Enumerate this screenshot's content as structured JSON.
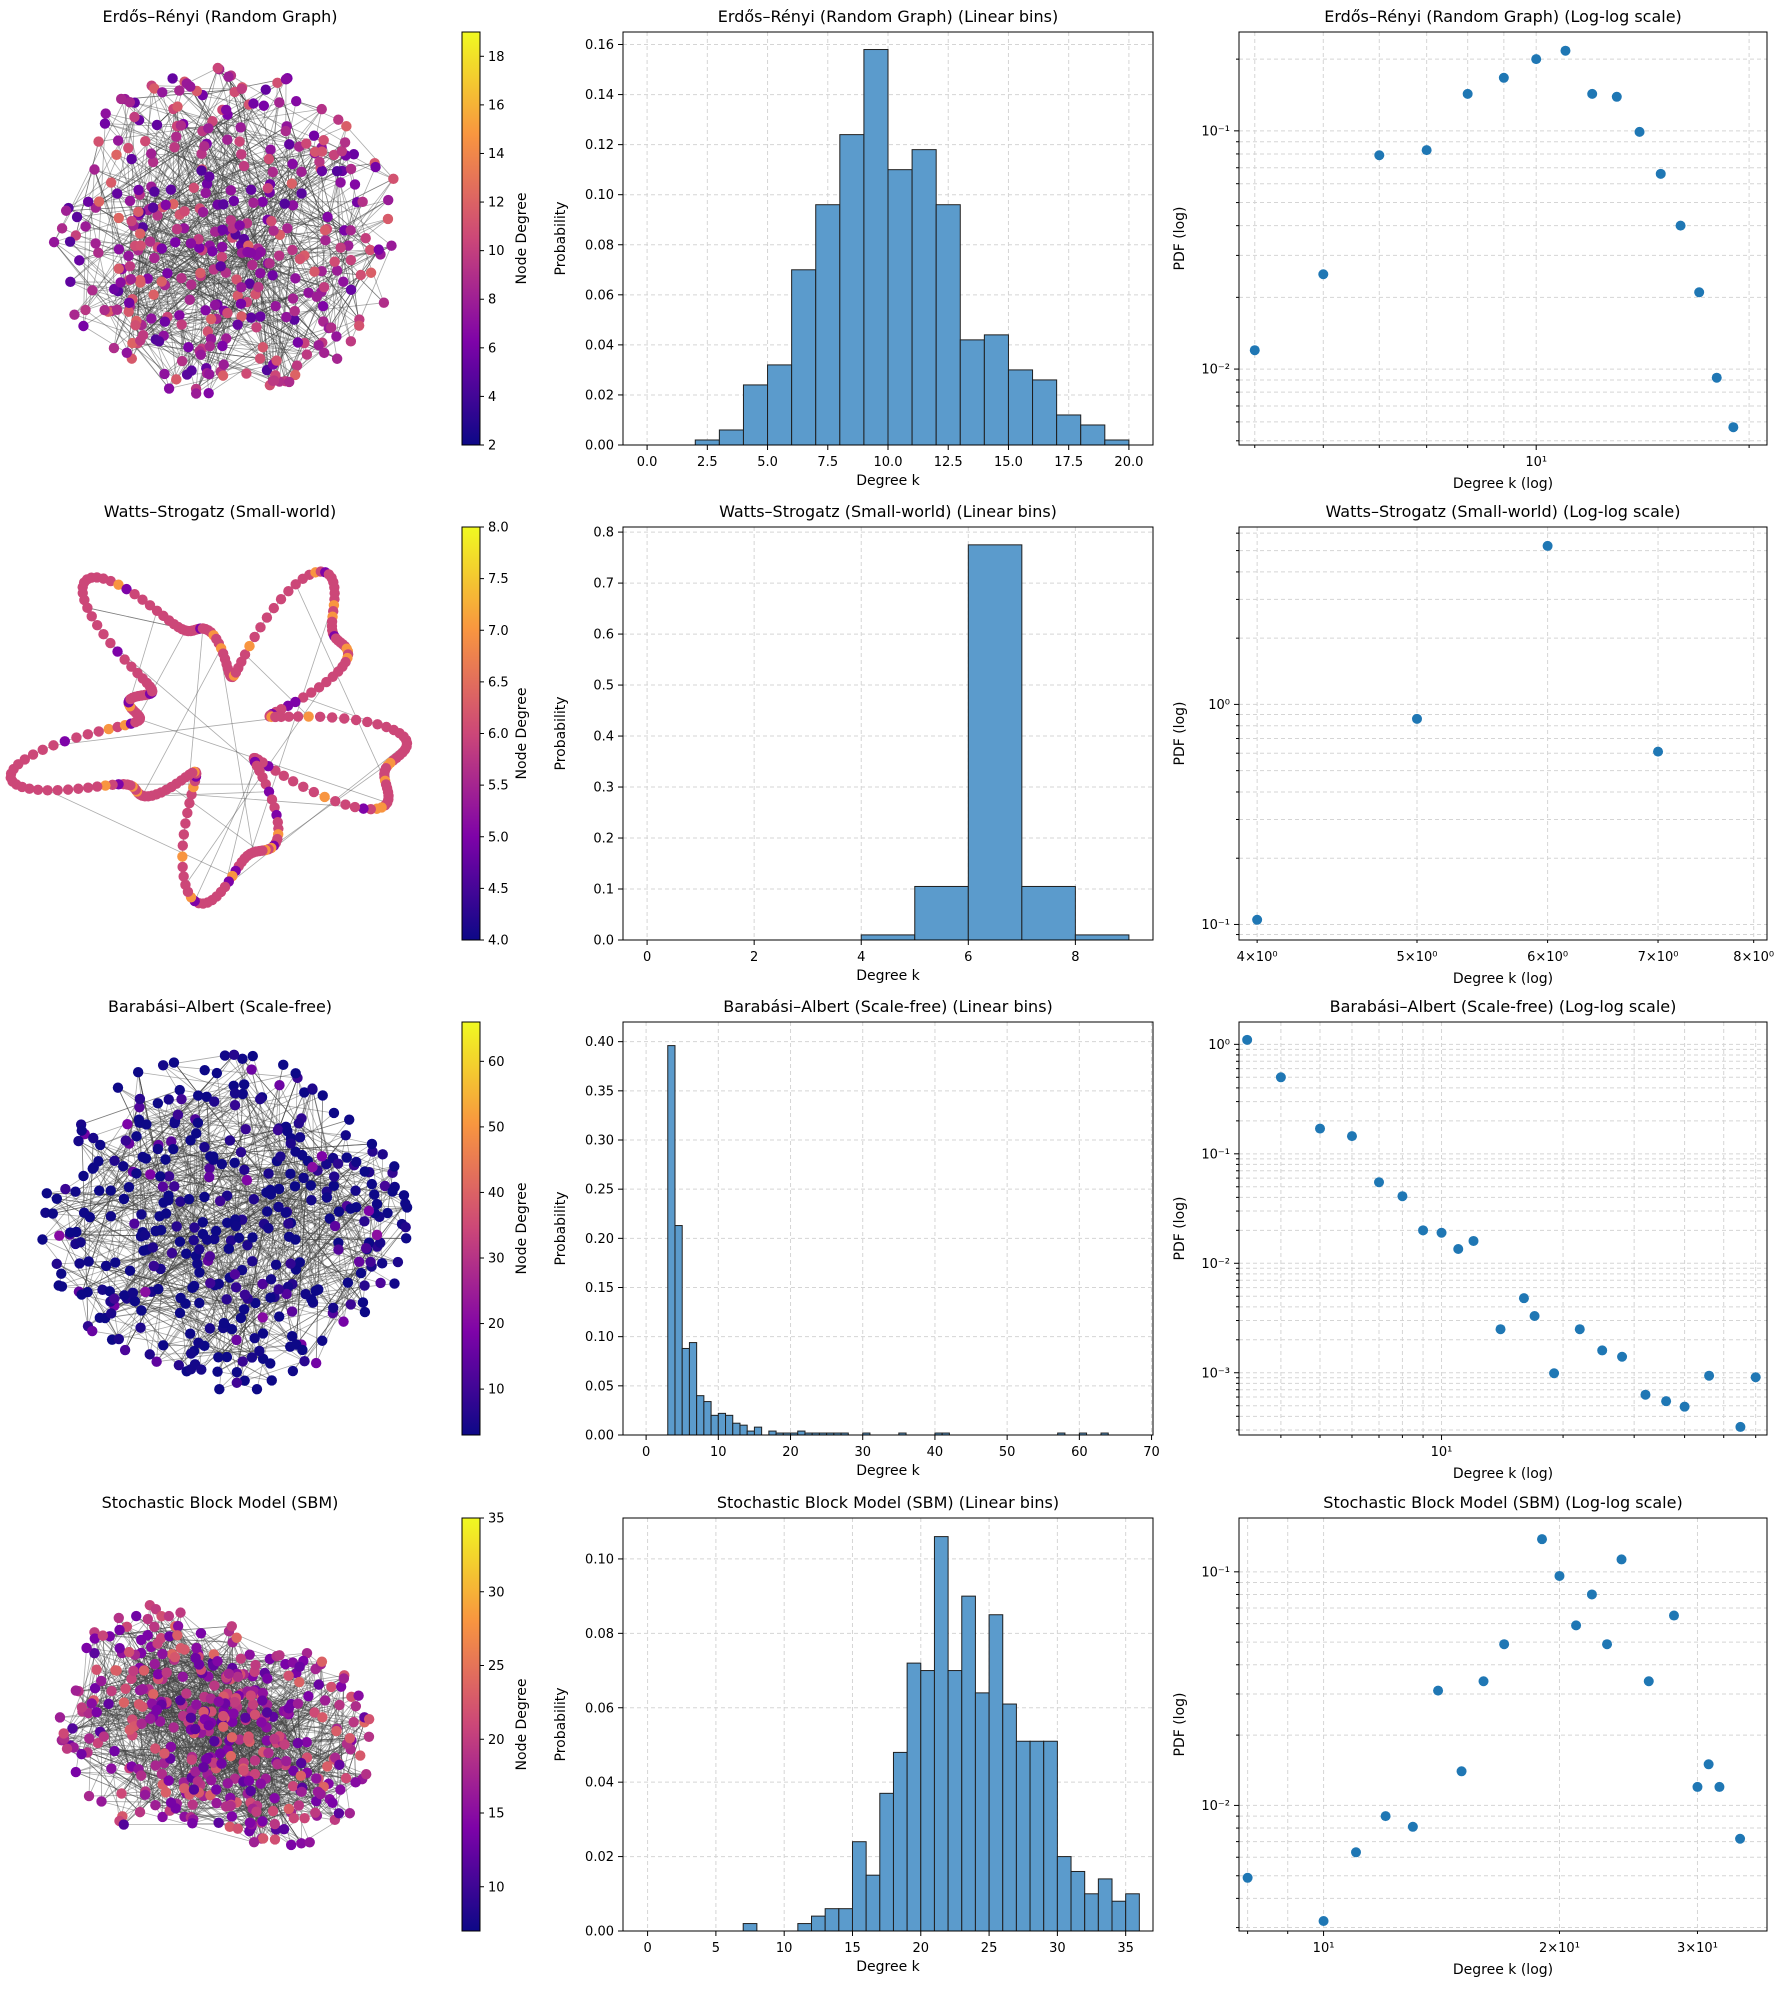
{
  "figure": {
    "rows": [
      {
        "network": {
          "title": "Erdős–Rényi (Random Graph)",
          "colorbar": {
            "label": "Node Degree",
            "ticks": [
              "2",
              "4",
              "6",
              "8",
              "10",
              "12",
              "14",
              "16",
              "18"
            ],
            "min": 2,
            "max": 19
          },
          "style": "dense",
          "node_degree_range": [
            2,
            19
          ]
        },
        "hist": {
          "title": "Erdős–Rényi (Random Graph) (Linear bins)",
          "xlabel": "Degree k",
          "ylabel": "Probability",
          "xticks": [
            "0.0",
            "2.5",
            "5.0",
            "7.5",
            "10.0",
            "12.5",
            "15.0",
            "17.5",
            "20.0"
          ],
          "yticks": [
            "0.00",
            "0.02",
            "0.04",
            "0.06",
            "0.08",
            "0.10",
            "0.12",
            "0.14",
            "0.16"
          ]
        },
        "loglog": {
          "title": "Erdős–Rényi (Random Graph) (Log-log scale)",
          "xlabel": "Degree k (log)",
          "ylabel": "PDF (log)",
          "xtick_labels": [
            "10¹"
          ],
          "ytick_labels": [
            "10⁻²",
            "10⁻¹"
          ]
        }
      },
      {
        "network": {
          "title": "Watts–Strogatz (Small-world)",
          "colorbar": {
            "label": "Node Degree",
            "ticks": [
              "4.0",
              "4.5",
              "5.0",
              "5.5",
              "6.0",
              "6.5",
              "7.0",
              "7.5",
              "8.0"
            ],
            "min": 4,
            "max": 8
          },
          "style": "ring",
          "node_degree_range": [
            4,
            8
          ]
        },
        "hist": {
          "title": "Watts–Strogatz (Small-world) (Linear bins)",
          "xlabel": "Degree k",
          "ylabel": "Probability",
          "xticks": [
            "0",
            "2",
            "4",
            "6",
            "8"
          ],
          "yticks": [
            "0.0",
            "0.1",
            "0.2",
            "0.3",
            "0.4",
            "0.5",
            "0.6",
            "0.7",
            "0.8"
          ]
        },
        "loglog": {
          "title": "Watts–Strogatz (Small-world) (Log-log scale)",
          "xlabel": "Degree k (log)",
          "ylabel": "PDF (log)",
          "xtick_labels": [
            "4×10⁰",
            "5×10⁰",
            "6×10⁰",
            "7×10⁰",
            "8×10⁰"
          ],
          "ytick_labels": [
            "10⁻¹",
            "10⁰"
          ]
        }
      },
      {
        "network": {
          "title": "Barabási–Albert (Scale-free)",
          "colorbar": {
            "label": "Node Degree",
            "ticks": [
              "10",
              "20",
              "30",
              "40",
              "50",
              "60"
            ],
            "min": 3,
            "max": 66
          },
          "style": "scalefree",
          "node_degree_range": [
            3,
            66
          ]
        },
        "hist": {
          "title": "Barabási–Albert (Scale-free) (Linear bins)",
          "xlabel": "Degree k",
          "ylabel": "Probability",
          "xticks": [
            "0",
            "10",
            "20",
            "30",
            "40",
            "50",
            "60",
            "70"
          ],
          "yticks": [
            "0.00",
            "0.05",
            "0.10",
            "0.15",
            "0.20",
            "0.25",
            "0.30",
            "0.35",
            "0.40"
          ]
        },
        "loglog": {
          "title": "Barabási–Albert (Scale-free) (Log-log scale)",
          "xlabel": "Degree k (log)",
          "ylabel": "PDF (log)",
          "xtick_labels": [
            "10¹"
          ],
          "ytick_labels": [
            "10⁻³",
            "10⁻²",
            "10⁻¹",
            "10⁰"
          ]
        }
      },
      {
        "network": {
          "title": "Stochastic Block Model (SBM)",
          "colorbar": {
            "label": "Node Degree",
            "ticks": [
              "10",
              "15",
              "20",
              "25",
              "30",
              "35"
            ],
            "min": 7,
            "max": 35
          },
          "style": "sbm",
          "node_degree_range": [
            7,
            35
          ]
        },
        "hist": {
          "title": "Stochastic Block Model (SBM) (Linear bins)",
          "xlabel": "Degree k",
          "ylabel": "Probability",
          "xticks": [
            "0",
            "5",
            "10",
            "15",
            "20",
            "25",
            "30",
            "35"
          ],
          "yticks": [
            "0.00",
            "0.02",
            "0.04",
            "0.06",
            "0.08",
            "0.10"
          ]
        },
        "loglog": {
          "title": "Stochastic Block Model (SBM) (Log-log scale)",
          "xlabel": "Degree k (log)",
          "ylabel": "PDF (log)",
          "xtick_labels": [
            "10¹",
            "2×10¹",
            "3×10¹"
          ],
          "ytick_labels": [
            "10⁻²",
            "10⁻¹"
          ]
        }
      }
    ]
  },
  "colors": {
    "bar_fill": "#5b9bcc",
    "bar_edge": "#1f1f1f",
    "point": "#1f77b4",
    "grid": "#d5d5d5"
  },
  "chart_data": [
    {
      "type": "histogram",
      "title": "Erdős–Rényi (Random Graph) (Linear bins)",
      "xlabel": "Degree k",
      "ylabel": "Probability",
      "xlim": [
        -1,
        21
      ],
      "ylim": [
        0,
        0.165
      ],
      "bin_edges": [
        2,
        3,
        4,
        5,
        6,
        7,
        8,
        9,
        10,
        11,
        12,
        13,
        14,
        15,
        16,
        17,
        18,
        19,
        20
      ],
      "values": [
        0.002,
        0.006,
        0.024,
        0.032,
        0.07,
        0.096,
        0.124,
        0.158,
        0.11,
        0.118,
        0.096,
        0.042,
        0.044,
        0.03,
        0.026,
        0.012,
        0.008,
        0.002
      ]
    },
    {
      "type": "scatter",
      "title": "Erdős–Rényi (Random Graph) (Log-log scale)",
      "xscale": "log",
      "yscale": "log",
      "xlabel": "Degree k (log)",
      "ylabel": "PDF (log)",
      "xlim": [
        3.8,
        21.2
      ],
      "ylim": [
        0.0048,
        0.26
      ],
      "x": [
        4,
        5,
        6,
        7,
        8,
        9,
        10,
        11,
        12,
        13,
        14,
        15,
        16,
        17,
        18,
        19
      ],
      "y": [
        0.012,
        0.025,
        0.079,
        0.083,
        0.143,
        0.167,
        0.2,
        0.217,
        0.143,
        0.139,
        0.099,
        0.066,
        0.04,
        0.021,
        0.0092,
        0.0057
      ]
    },
    {
      "type": "histogram",
      "title": "Watts–Strogatz (Small-world) (Linear bins)",
      "xlabel": "Degree k",
      "ylabel": "Probability",
      "xlim": [
        -0.45,
        9.45
      ],
      "ylim": [
        0,
        0.81
      ],
      "bin_edges": [
        0,
        1,
        2,
        3,
        4,
        5,
        6,
        7,
        8,
        9
      ],
      "values": [
        0,
        0,
        0,
        0,
        0.01,
        0.105,
        0.775,
        0.105,
        0.01
      ]
    },
    {
      "type": "scatter",
      "title": "Watts–Strogatz (Small-world) (Log-log scale)",
      "xscale": "log",
      "yscale": "log",
      "xlabel": "Degree k (log)",
      "ylabel": "PDF (log)",
      "xlim": [
        3.9,
        8.15
      ],
      "ylim": [
        0.085,
        6.4
      ],
      "x": [
        4,
        5,
        6,
        7
      ],
      "y": [
        0.105,
        0.86,
        5.25,
        0.61
      ]
    },
    {
      "type": "histogram",
      "title": "Barabási–Albert (Scale-free) (Linear bins)",
      "xlabel": "Degree k",
      "ylabel": "Probability",
      "xlim": [
        -3.2,
        70.2
      ],
      "ylim": [
        0,
        0.42
      ],
      "bin_edges": [
        3,
        4,
        5,
        6,
        7,
        8,
        9,
        10,
        11,
        12,
        13,
        14,
        15,
        16,
        17,
        18,
        19,
        20,
        21,
        22,
        23,
        24,
        25,
        26,
        27,
        28,
        29,
        30,
        31,
        32,
        33,
        34,
        35,
        36,
        37,
        38,
        39,
        40,
        41,
        42,
        43,
        44,
        45,
        46,
        47,
        48,
        49,
        50,
        51,
        52,
        53,
        54,
        55,
        56,
        57,
        58,
        59,
        60,
        61,
        62,
        63,
        64,
        65,
        66,
        67
      ],
      "values": [
        0.396,
        0.213,
        0.088,
        0.094,
        0.04,
        0.034,
        0.02,
        0.022,
        0.02,
        0.012,
        0.01,
        0.004,
        0.008,
        0,
        0.004,
        0.002,
        0.002,
        0.002,
        0.004,
        0.002,
        0.002,
        0.002,
        0.002,
        0.002,
        0.002,
        0,
        0,
        0.002,
        0,
        0,
        0,
        0,
        0.002,
        0,
        0,
        0,
        0,
        0.002,
        0.002,
        0,
        0,
        0,
        0,
        0,
        0,
        0,
        0,
        0,
        0,
        0,
        0,
        0,
        0,
        0,
        0.002,
        0,
        0,
        0.002,
        0,
        0,
        0.002,
        0,
        0,
        0,
        0.002
      ]
    },
    {
      "type": "scatter",
      "title": "Barabási–Albert (Scale-free) (Log-log scale)",
      "xscale": "log",
      "yscale": "log",
      "xlabel": "Degree k (log)",
      "ylabel": "PDF (log)",
      "xlim": [
        3.15,
        64
      ],
      "ylim": [
        0.00027,
        1.6
      ],
      "x": [
        3.3,
        4,
        5,
        6,
        7,
        8,
        9,
        10,
        11,
        12,
        14,
        16,
        17,
        19,
        22,
        25,
        28,
        32,
        36,
        40,
        46,
        55,
        60
      ],
      "y": [
        1.1,
        0.5,
        0.17,
        0.145,
        0.055,
        0.041,
        0.02,
        0.019,
        0.0135,
        0.016,
        0.0025,
        0.0048,
        0.0033,
        0.00099,
        0.0025,
        0.0016,
        0.0014,
        0.00063,
        0.00055,
        0.00049,
        0.00094,
        0.00032,
        0.00091
      ]
    },
    {
      "type": "histogram",
      "title": "Stochastic Block Model (SBM) (Linear bins)",
      "xlabel": "Degree k",
      "ylabel": "Probability",
      "xlim": [
        -1.8,
        37.0
      ],
      "ylim": [
        0,
        0.111
      ],
      "bin_edges": [
        7,
        8,
        9,
        10,
        11,
        12,
        13,
        14,
        15,
        16,
        17,
        18,
        19,
        20,
        21,
        22,
        23,
        24,
        25,
        26,
        27,
        28,
        29,
        30,
        31,
        32,
        33,
        34,
        35,
        36
      ],
      "values": [
        0.002,
        0,
        0,
        0,
        0.002,
        0.004,
        0.006,
        0.006,
        0.024,
        0.015,
        0.037,
        0.048,
        0.072,
        0.07,
        0.106,
        0.07,
        0.09,
        0.064,
        0.085,
        0.061,
        0.051,
        0.051,
        0.051,
        0.02,
        0.016,
        0.01,
        0.014,
        0.008,
        0.01,
        0.004
      ]
    },
    {
      "type": "scatter",
      "title": "Stochastic Block Model (SBM) (Log-log scale)",
      "xscale": "log",
      "yscale": "log",
      "xlabel": "Degree k (log)",
      "ylabel": "PDF (log)",
      "xlim": [
        7.8,
        36.8
      ],
      "ylim": [
        0.0029,
        0.17
      ],
      "x": [
        8,
        10,
        11,
        12,
        13,
        14,
        15,
        16,
        17,
        19,
        20,
        21,
        22,
        23,
        24,
        26,
        28,
        30,
        31,
        32,
        34
      ],
      "y": [
        0.0049,
        0.0032,
        0.0063,
        0.009,
        0.0081,
        0.031,
        0.014,
        0.034,
        0.049,
        0.138,
        0.096,
        0.059,
        0.08,
        0.049,
        0.113,
        0.034,
        0.065,
        0.012,
        0.015,
        0.012,
        0.0072
      ]
    }
  ]
}
